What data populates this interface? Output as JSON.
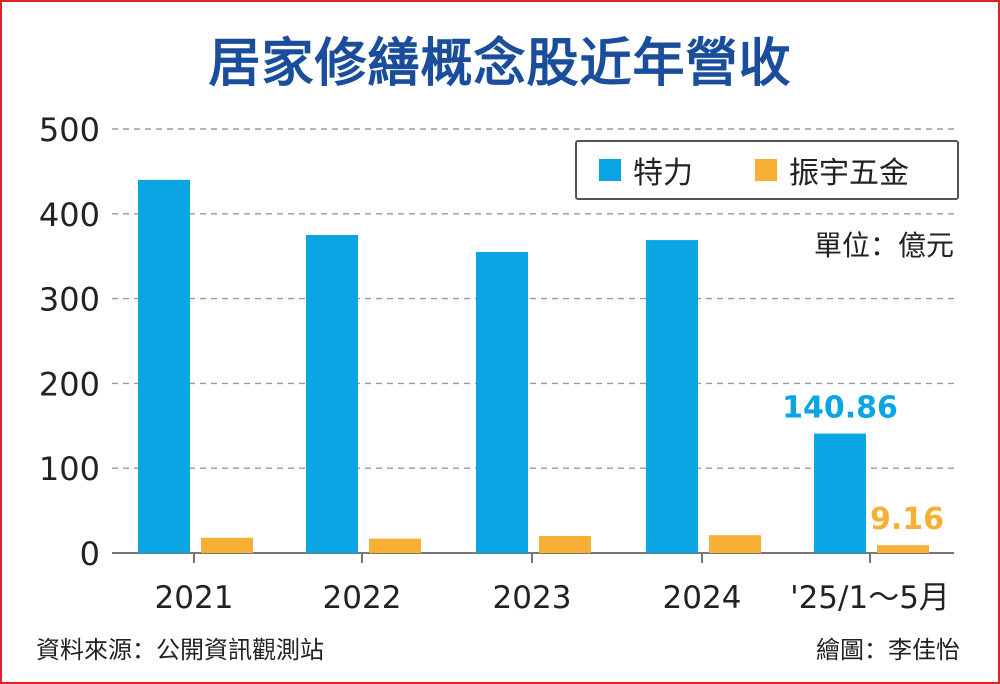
{
  "title": "居家修繕概念股近年營收",
  "unit": "單位：億元",
  "source": "資料來源：公開資訊觀測站",
  "credit": "繪圖：李佳怡",
  "colors": {
    "teli": "#0aa5e2",
    "zhenyu": "#f7b035",
    "title": "#1a4d9c",
    "border": "#e0222a"
  },
  "chart_data": {
    "type": "bar",
    "categories": [
      "2021",
      "2022",
      "2023",
      "2024",
      "'25/1～5月"
    ],
    "series": [
      {
        "name": "特力",
        "values": [
          440,
          375,
          355,
          369,
          140.86
        ]
      },
      {
        "name": "振宇五金",
        "values": [
          18,
          17,
          20,
          21,
          9.16
        ]
      }
    ],
    "data_labels": [
      {
        "series": 0,
        "index": 4,
        "text": "140.86"
      },
      {
        "series": 1,
        "index": 4,
        "text": "9.16"
      }
    ],
    "yticks": [
      "0",
      "100",
      "200",
      "300",
      "400",
      "500"
    ],
    "ylim": [
      0,
      500
    ],
    "grid": true,
    "legend_position": "top-right"
  }
}
